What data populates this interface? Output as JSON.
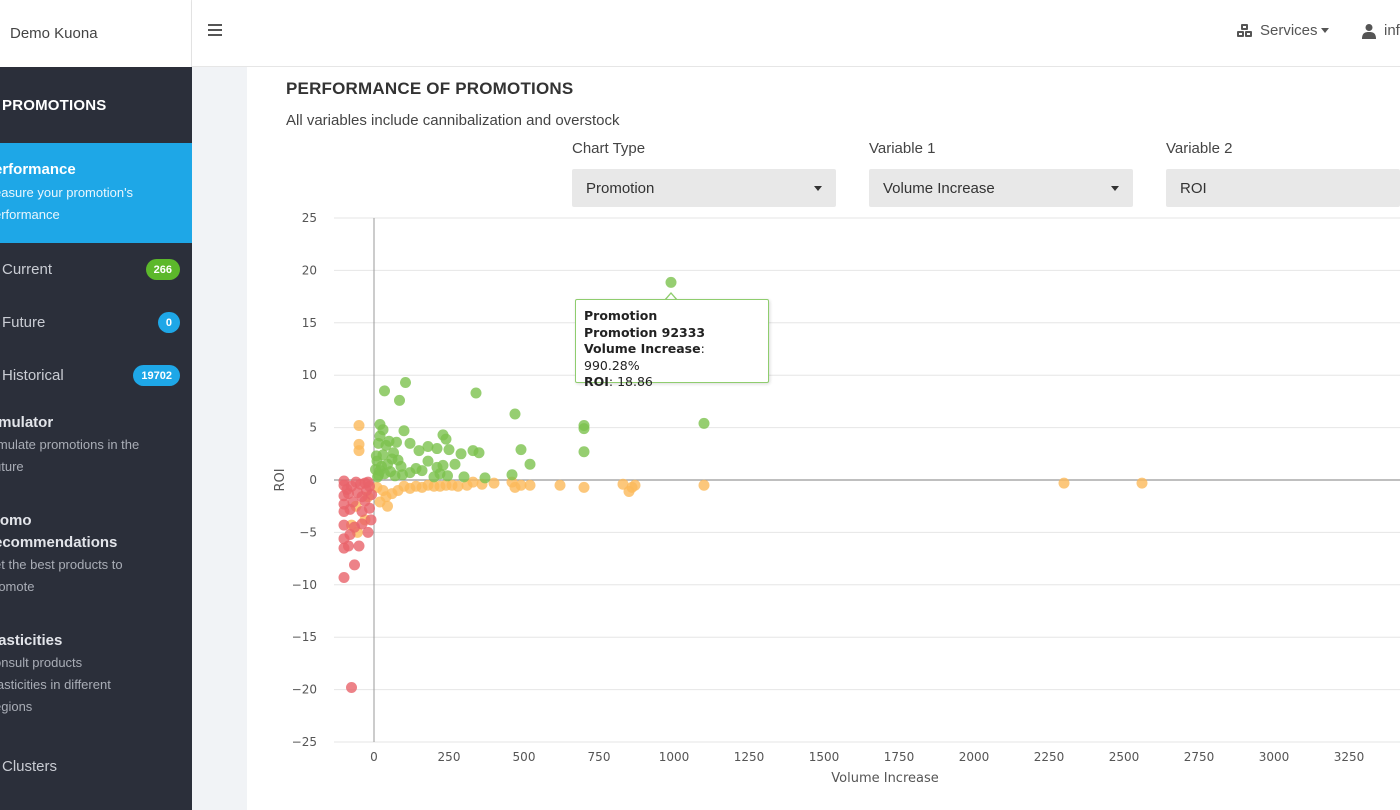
{
  "brand": "Demo Kuona",
  "sidebar": {
    "heading": "PROMOTIONS",
    "active": {
      "title": "erformance",
      "desc1": "easure your promotion's",
      "desc2": "erformance"
    },
    "subitems": [
      {
        "label": "Current",
        "badge": "266",
        "badge_color": "#5cb82b"
      },
      {
        "label": "Future",
        "badge": "0",
        "badge_color": "#1ea7e7"
      },
      {
        "label": "Historical",
        "badge": "19702",
        "badge_color": "#1ea7e7"
      }
    ],
    "simulator": {
      "title": "imulator",
      "desc1": "imulate promotions in the",
      "desc2": "uture"
    },
    "reco": {
      "title1": "romo",
      "title2": "ecommendations",
      "desc1": "et the best products to",
      "desc2": "romote"
    },
    "elast": {
      "title": "lasticities",
      "desc1": "onsult products",
      "desc2": "lasticities in different",
      "desc3": "egions"
    },
    "clusters": "Clusters"
  },
  "topnav": {
    "services": "Services",
    "user": "inf"
  },
  "main": {
    "title": "PERFORMANCE OF PROMOTIONS",
    "subtitle": "All variables include cannibalization and overstock",
    "controls": [
      {
        "label": "Chart Type",
        "value": "Promotion"
      },
      {
        "label": "Variable 1",
        "value": "Volume Increase"
      },
      {
        "label": "Variable 2",
        "value": "ROI"
      }
    ]
  },
  "tooltip": {
    "line1": "Promotion",
    "line2": "Promotion 92333",
    "k3": "Volume Increase",
    "v3": ": 990.28%",
    "k4": "ROI",
    "v4": ": 18.86"
  },
  "chart_data": {
    "type": "scatter",
    "xlabel": "Volume Increase",
    "ylabel": "ROI",
    "xticks": [
      0,
      250,
      500,
      750,
      1000,
      1250,
      1500,
      1750,
      2000,
      2250,
      2500,
      2750,
      3000,
      3250
    ],
    "yticks": [
      25,
      20,
      15,
      10,
      5,
      0,
      -5,
      -10,
      -15,
      -20,
      -25
    ],
    "ylim": [
      -25,
      25
    ],
    "grid": true,
    "colors": {
      "green": "#7cc24e",
      "orange": "#fbb95a",
      "red": "#e8636a"
    },
    "series": [
      {
        "color": "green",
        "points": [
          [
            990,
            18.86
          ],
          [
            35,
            8.5
          ],
          [
            105,
            9.3
          ],
          [
            85,
            7.6
          ],
          [
            340,
            8.3
          ],
          [
            470,
            6.3
          ],
          [
            1100,
            5.4
          ],
          [
            700,
            5.2
          ],
          [
            700,
            4.9
          ],
          [
            20,
            5.3
          ],
          [
            30,
            4.8
          ],
          [
            20,
            4.2
          ],
          [
            50,
            3.7
          ],
          [
            15,
            3.5
          ],
          [
            40,
            3.3
          ],
          [
            75,
            3.6
          ],
          [
            100,
            4.7
          ],
          [
            230,
            4.3
          ],
          [
            240,
            3.9
          ],
          [
            120,
            3.5
          ],
          [
            180,
            3.2
          ],
          [
            210,
            3.0
          ],
          [
            150,
            2.8
          ],
          [
            250,
            2.9
          ],
          [
            290,
            2.5
          ],
          [
            330,
            2.8
          ],
          [
            350,
            2.6
          ],
          [
            490,
            2.9
          ],
          [
            700,
            2.7
          ],
          [
            520,
            1.5
          ],
          [
            460,
            0.5
          ],
          [
            370,
            0.2
          ],
          [
            300,
            0.3
          ],
          [
            270,
            1.5
          ],
          [
            210,
            1.2
          ],
          [
            180,
            1.8
          ],
          [
            140,
            1.1
          ],
          [
            120,
            0.7
          ],
          [
            90,
            1.3
          ],
          [
            60,
            2.0
          ],
          [
            30,
            2.4
          ],
          [
            10,
            1.8
          ],
          [
            5,
            1.0
          ],
          [
            15,
            0.5
          ],
          [
            25,
            1.3
          ],
          [
            45,
            1.5
          ],
          [
            55,
            0.8
          ],
          [
            65,
            2.6
          ],
          [
            70,
            0.4
          ],
          [
            80,
            1.9
          ],
          [
            8,
            2.3
          ],
          [
            20,
            0.9
          ],
          [
            35,
            0.6
          ],
          [
            12,
            0.3
          ],
          [
            95,
            0.5
          ],
          [
            160,
            0.9
          ],
          [
            200,
            0.3
          ],
          [
            230,
            1.4
          ],
          [
            220,
            0.6
          ],
          [
            245,
            0.4
          ]
        ]
      },
      {
        "color": "orange",
        "points": [
          [
            2300,
            -0.3
          ],
          [
            2560,
            -0.3
          ],
          [
            1100,
            -0.5
          ],
          [
            860,
            -0.7
          ],
          [
            870,
            -0.5
          ],
          [
            830,
            -0.4
          ],
          [
            700,
            -0.7
          ],
          [
            620,
            -0.5
          ],
          [
            520,
            -0.5
          ],
          [
            490,
            -0.5
          ],
          [
            460,
            -0.2
          ],
          [
            400,
            -0.3
          ],
          [
            360,
            -0.4
          ],
          [
            310,
            -0.5
          ],
          [
            280,
            -0.6
          ],
          [
            260,
            -0.5
          ],
          [
            240,
            -0.5
          ],
          [
            220,
            -0.6
          ],
          [
            200,
            -0.6
          ],
          [
            180,
            -0.5
          ],
          [
            160,
            -0.7
          ],
          [
            140,
            -0.6
          ],
          [
            120,
            -0.8
          ],
          [
            100,
            -0.6
          ],
          [
            80,
            -1.0
          ],
          [
            60,
            -1.3
          ],
          [
            40,
            -1.6
          ],
          [
            20,
            -2.1
          ],
          [
            45,
            -2.5
          ],
          [
            30,
            -1.0
          ],
          [
            10,
            -0.7
          ],
          [
            -50,
            5.2
          ],
          [
            -50,
            3.4
          ],
          [
            -50,
            2.8
          ],
          [
            -60,
            -2.5
          ],
          [
            -75,
            -4.3
          ],
          [
            -55,
            -5.0
          ],
          [
            -30,
            -3.8
          ],
          [
            -20,
            -1.6
          ],
          [
            850,
            -1.1
          ],
          [
            470,
            -0.7
          ],
          [
            330,
            -0.2
          ]
        ]
      },
      {
        "color": "red",
        "points": [
          [
            -75,
            -19.8
          ],
          [
            -100,
            -9.3
          ],
          [
            -65,
            -8.1
          ],
          [
            -100,
            -6.5
          ],
          [
            -85,
            -6.3
          ],
          [
            -50,
            -6.3
          ],
          [
            -100,
            -5.6
          ],
          [
            -80,
            -5.2
          ],
          [
            -20,
            -5.0
          ],
          [
            -100,
            -4.3
          ],
          [
            -65,
            -4.5
          ],
          [
            -40,
            -4.2
          ],
          [
            -10,
            -3.8
          ],
          [
            -100,
            -3.0
          ],
          [
            -80,
            -2.8
          ],
          [
            -40,
            -3.0
          ],
          [
            -15,
            -2.7
          ],
          [
            -100,
            -2.3
          ],
          [
            -70,
            -2.1
          ],
          [
            -30,
            -2.0
          ],
          [
            -100,
            -1.5
          ],
          [
            -85,
            -1.3
          ],
          [
            -55,
            -1.2
          ],
          [
            -25,
            -1.0
          ],
          [
            -100,
            -0.5
          ],
          [
            -75,
            -0.6
          ],
          [
            -45,
            -0.4
          ],
          [
            -15,
            -0.6
          ],
          [
            -100,
            -0.1
          ],
          [
            -60,
            -0.2
          ],
          [
            -20,
            -0.2
          ],
          [
            -90,
            -0.9
          ],
          [
            -40,
            -1.6
          ],
          [
            -8,
            -1.4
          ],
          [
            -30,
            -0.3
          ]
        ]
      }
    ]
  }
}
